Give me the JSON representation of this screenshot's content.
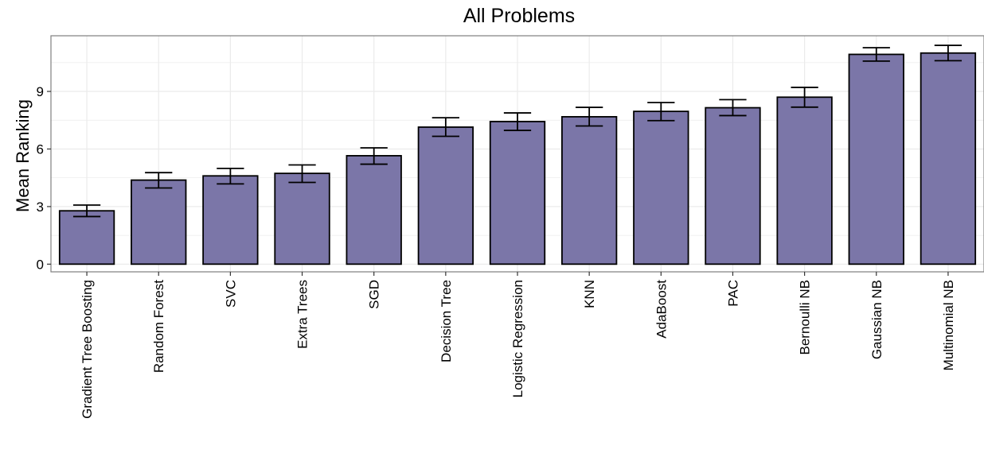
{
  "chart_data": {
    "type": "bar",
    "title": "All Problems",
    "xlabel": "",
    "ylabel": "Mean Ranking",
    "ylim": [
      -0.4,
      11.9
    ],
    "yticks": [
      0,
      3,
      6,
      9
    ],
    "grid": true,
    "categories": [
      "Gradient Tree Boosting",
      "Random Forest",
      "SVC",
      "Extra Trees",
      "SGD",
      "Decision Tree",
      "Logistic Regression",
      "KNN",
      "AdaBoost",
      "PAC",
      "Bernoulli NB",
      "Gaussian NB",
      "Multinomial NB"
    ],
    "values": [
      2.78,
      4.38,
      4.6,
      4.73,
      5.65,
      7.14,
      7.43,
      7.68,
      7.96,
      8.15,
      8.7,
      10.93,
      11.0
    ],
    "error_low": [
      2.48,
      3.97,
      4.18,
      4.26,
      5.21,
      6.66,
      6.97,
      7.2,
      7.48,
      7.74,
      8.18,
      10.58,
      10.6
    ],
    "error_high": [
      3.08,
      4.77,
      4.99,
      5.17,
      6.06,
      7.63,
      7.88,
      8.17,
      8.42,
      8.57,
      9.21,
      11.28,
      11.4
    ],
    "bar_color": "#7B76A8",
    "grid_color": "#EBEBEB",
    "panel_border_color": "#7F7F7F"
  }
}
